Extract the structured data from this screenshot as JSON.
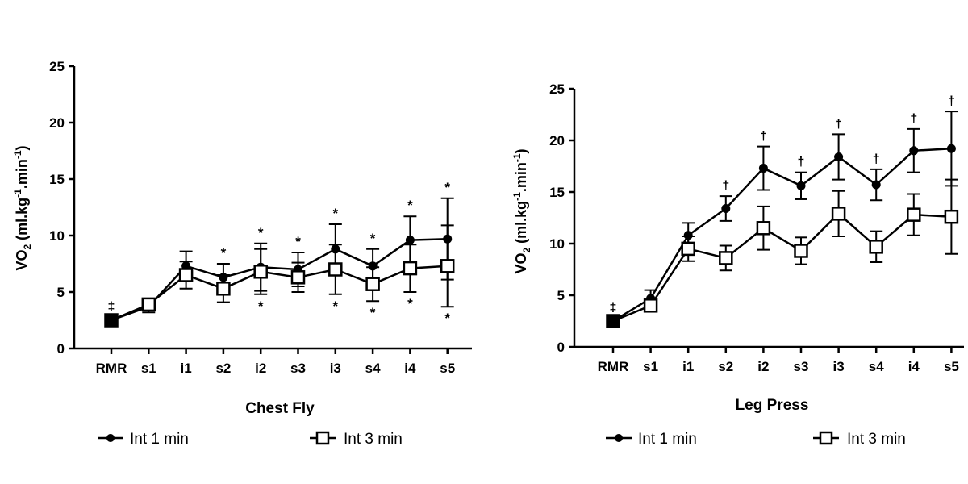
{
  "chart_data": [
    {
      "type": "line",
      "panel": "chest-fly",
      "xlabel": "Chest Fly",
      "ylabel": {
        "base": "VO",
        "sub": "2",
        "units_pre": " (ml.kg",
        "sup1": "-1",
        "units_mid": ".min",
        "sup2": "-1",
        "units_post": ")"
      },
      "ylim": [
        0,
        25
      ],
      "yticks": [
        0,
        5,
        10,
        15,
        20,
        25
      ],
      "categories": [
        "RMR",
        "s1",
        "i1",
        "s2",
        "i2",
        "s3",
        "i3",
        "s4",
        "i4",
        "s5"
      ],
      "series": [
        {
          "name": "Int 1 min",
          "marker": "circle",
          "values": [
            2.5,
            3.7,
            7.3,
            6.3,
            7.2,
            7.0,
            8.8,
            7.3,
            9.6,
            9.7
          ],
          "err": [
            0,
            0.5,
            1.3,
            1.2,
            2.1,
            1.5,
            2.2,
            1.5,
            2.1,
            3.6
          ]
        },
        {
          "name": "Int 3 min",
          "marker": "square",
          "values": [
            2.5,
            3.9,
            6.5,
            5.3,
            6.8,
            6.3,
            7.0,
            5.7,
            7.1,
            7.3
          ],
          "err": [
            0,
            0.5,
            1.2,
            1.2,
            2.0,
            1.3,
            2.2,
            1.5,
            2.1,
            3.6
          ]
        }
      ],
      "annotations": [
        {
          "category": "RMR",
          "symbol": "‡",
          "position": "above"
        },
        {
          "category": "s2",
          "symbol": "*",
          "position": "above"
        },
        {
          "category": "i2",
          "symbol": "*",
          "position": "above"
        },
        {
          "category": "i2",
          "symbol": "*",
          "position": "below"
        },
        {
          "category": "s3",
          "symbol": "*",
          "position": "above"
        },
        {
          "category": "i3",
          "symbol": "*",
          "position": "above"
        },
        {
          "category": "i3",
          "symbol": "*",
          "position": "below"
        },
        {
          "category": "s4",
          "symbol": "*",
          "position": "above"
        },
        {
          "category": "s4",
          "symbol": "*",
          "position": "below"
        },
        {
          "category": "i4",
          "symbol": "*",
          "position": "above"
        },
        {
          "category": "i4",
          "symbol": "*",
          "position": "below"
        },
        {
          "category": "s5",
          "symbol": "*",
          "position": "above"
        },
        {
          "category": "s5",
          "symbol": "*",
          "position": "below"
        }
      ]
    },
    {
      "type": "line",
      "panel": "leg-press",
      "xlabel": "Leg  Press",
      "ylabel": {
        "base": "VO",
        "sub": "2",
        "units_pre": " (ml.kg",
        "sup1": "-1",
        "units_mid": ".min",
        "sup2": "-1",
        "units_post": ")"
      },
      "ylim": [
        0,
        25
      ],
      "yticks": [
        0,
        5,
        10,
        15,
        20,
        25
      ],
      "categories": [
        "RMR",
        "s1",
        "i1",
        "s2",
        "i2",
        "s3",
        "i3",
        "s4",
        "i4",
        "s5"
      ],
      "series": [
        {
          "name": "Int 1 min",
          "marker": "circle",
          "values": [
            2.5,
            4.7,
            10.8,
            13.4,
            17.3,
            15.6,
            18.4,
            15.7,
            19.0,
            19.2
          ],
          "err": [
            0,
            0.8,
            1.2,
            1.2,
            2.1,
            1.3,
            2.2,
            1.5,
            2.1,
            3.6
          ]
        },
        {
          "name": "Int 3 min",
          "marker": "square",
          "values": [
            2.5,
            4.0,
            9.5,
            8.6,
            11.5,
            9.3,
            12.9,
            9.7,
            12.8,
            12.6
          ],
          "err": [
            0,
            0.5,
            1.2,
            1.2,
            2.1,
            1.3,
            2.2,
            1.5,
            2.0,
            3.6
          ]
        }
      ],
      "annotations": [
        {
          "category": "RMR",
          "symbol": "‡",
          "position": "above"
        },
        {
          "category": "s2",
          "symbol": "†",
          "position": "above"
        },
        {
          "category": "i2",
          "symbol": "†",
          "position": "above"
        },
        {
          "category": "s3",
          "symbol": "†",
          "position": "above"
        },
        {
          "category": "i3",
          "symbol": "†",
          "position": "above"
        },
        {
          "category": "s4",
          "symbol": "†",
          "position": "above"
        },
        {
          "category": "i4",
          "symbol": "†",
          "position": "above"
        },
        {
          "category": "s5",
          "symbol": "†",
          "position": "above"
        }
      ]
    }
  ],
  "legend": {
    "series1": "Int 1 min",
    "series2": "Int 3 min"
  }
}
